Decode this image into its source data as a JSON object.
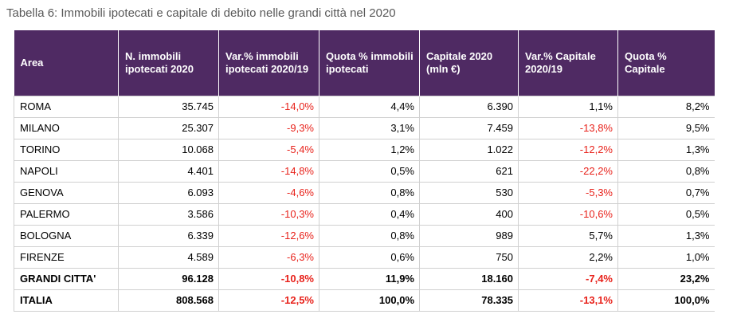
{
  "caption": "Tabella 6: Immobili ipotecati e capitale di debito nelle grandi città nel 2020",
  "colors": {
    "header_bg": "#4f2a63",
    "header_text": "#ffffff",
    "negative": "#e8221b",
    "grid": "#d0d0d0"
  },
  "table": {
    "headers": [
      "Area",
      "N. immobili ipotecati 2020",
      "Var.% immobili ipotecati 2020/19",
      "Quota % immobili ipotecati",
      "Capitale 2020 (mln €)",
      "Var.% Capitale 2020/19",
      "Quota % Capitale"
    ],
    "rows": [
      [
        "ROMA",
        "35.745",
        "-14,0%",
        "4,4%",
        "6.390",
        "1,1%",
        "8,2%"
      ],
      [
        "MILANO",
        "25.307",
        "-9,3%",
        "3,1%",
        "7.459",
        "-13,8%",
        "9,5%"
      ],
      [
        "TORINO",
        "10.068",
        "-5,4%",
        "1,2%",
        "1.022",
        "-12,2%",
        "1,3%"
      ],
      [
        "NAPOLI",
        "4.401",
        "-14,8%",
        "0,5%",
        "621",
        "-22,2%",
        "0,8%"
      ],
      [
        "GENOVA",
        "6.093",
        "-4,6%",
        "0,8%",
        "530",
        "-5,3%",
        "0,7%"
      ],
      [
        "PALERMO",
        "3.586",
        "-10,3%",
        "0,4%",
        "400",
        "-10,6%",
        "0,5%"
      ],
      [
        "BOLOGNA",
        "6.339",
        "-12,6%",
        "0,8%",
        "989",
        "5,7%",
        "1,3%"
      ],
      [
        "FIRENZE",
        "4.589",
        "-6,3%",
        "0,6%",
        "750",
        "2,2%",
        "1,0%"
      ]
    ],
    "totals": [
      [
        "GRANDI CITTA'",
        "96.128",
        "-10,8%",
        "11,9%",
        "18.160",
        "-7,4%",
        "23,2%"
      ],
      [
        "ITALIA",
        "808.568",
        "-12,5%",
        "100,0%",
        "78.335",
        "-13,1%",
        "100,0%"
      ]
    ]
  }
}
